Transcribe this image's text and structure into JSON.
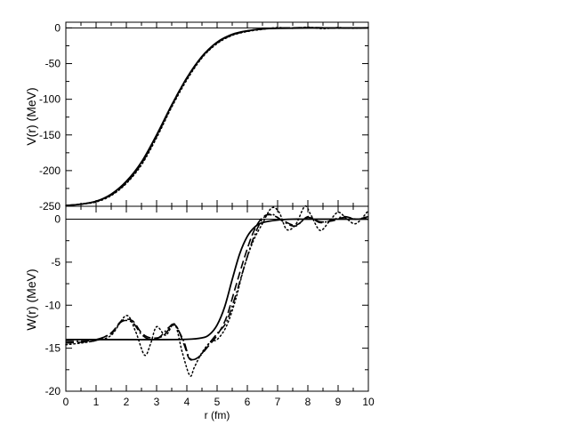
{
  "chart_data": [
    {
      "type": "line",
      "panel": "top",
      "ylabel": "V(r) (MeV)",
      "xlim": [
        0,
        10
      ],
      "ylim": [
        -250,
        8
      ],
      "yticks": [
        0,
        -50,
        -100,
        -150,
        -200,
        -250
      ],
      "zero_line": true,
      "series": [
        {
          "style": "solid",
          "x": [
            0,
            0.5,
            1,
            1.5,
            2,
            2.5,
            3,
            3.5,
            4,
            4.5,
            5,
            5.5,
            6,
            6.5,
            7,
            8,
            9,
            10
          ],
          "y": [
            -249,
            -247,
            -243,
            -233,
            -215,
            -188,
            -150,
            -108,
            -70,
            -40,
            -20,
            -9,
            -4,
            -1.5,
            -0.6,
            -0.1,
            0,
            0
          ]
        },
        {
          "style": "dashed",
          "x": [
            0,
            0.5,
            1,
            1.5,
            2,
            2.5,
            3,
            3.5,
            4,
            4.5,
            5,
            5.5,
            6,
            6.5,
            7,
            8,
            9,
            10
          ],
          "y": [
            -249,
            -247,
            -243,
            -234,
            -217,
            -190,
            -152,
            -109,
            -71,
            -41,
            -21,
            -10,
            -4.5,
            -1.5,
            -0.3,
            0.5,
            0,
            0.3
          ]
        },
        {
          "style": "dotted",
          "x": [
            0,
            0.5,
            1,
            1.5,
            2,
            2.5,
            3,
            3.5,
            4,
            4.5,
            5,
            5.5,
            6,
            6.5,
            7,
            7.5,
            8,
            8.5,
            9,
            9.5,
            10
          ],
          "y": [
            -249,
            -247,
            -244,
            -235,
            -218,
            -192,
            -154,
            -111,
            -73,
            -42,
            -22,
            -10.5,
            -5,
            -2,
            0.5,
            -0.5,
            1,
            -1,
            0.5,
            -0.5,
            0.5
          ]
        },
        {
          "style": "dash-dot",
          "x": [
            0,
            0.5,
            1,
            1.5,
            2,
            2.5,
            3,
            3.5,
            4,
            4.5,
            5,
            5.5,
            6,
            6.5,
            7,
            8,
            9,
            10
          ],
          "y": [
            -249,
            -247,
            -243,
            -234,
            -216,
            -190,
            -151,
            -108,
            -70,
            -40,
            -20,
            -9.5,
            -4,
            -1.2,
            -0.2,
            0.3,
            -0.2,
            0.2
          ]
        }
      ]
    },
    {
      "type": "line",
      "panel": "bottom",
      "xlabel": "r (fm)",
      "ylabel": "W(r) (MeV)",
      "xlim": [
        0,
        10
      ],
      "ylim": [
        -20,
        1.5
      ],
      "xticks": [
        0,
        1,
        2,
        3,
        4,
        5,
        6,
        7,
        8,
        9,
        10
      ],
      "yticks": [
        0,
        -5,
        -10,
        -15,
        -20
      ],
      "zero_line": true,
      "series": [
        {
          "style": "solid",
          "x": [
            0,
            1,
            2,
            3,
            4,
            4.5,
            4.75,
            5,
            5.25,
            5.5,
            5.75,
            6,
            6.25,
            6.5,
            7,
            7.5,
            8,
            9,
            10
          ],
          "y": [
            -14,
            -14,
            -14,
            -14,
            -13.97,
            -13.8,
            -13.4,
            -12.3,
            -10.2,
            -7,
            -4,
            -2,
            -0.9,
            -0.4,
            -0.1,
            0,
            0,
            0,
            0
          ]
        },
        {
          "style": "dashed",
          "x": [
            0,
            0.5,
            1,
            1.5,
            1.85,
            2.2,
            2.5,
            2.8,
            3.2,
            3.6,
            3.9,
            4.1,
            4.4,
            4.7,
            5,
            5.3,
            5.6,
            5.9,
            6.2,
            6.5,
            6.8,
            7.2,
            7.6,
            8,
            8.4,
            8.8,
            9.2,
            9.6,
            10
          ],
          "y": [
            -14.4,
            -14.3,
            -14.1,
            -13.2,
            -11.8,
            -11.8,
            -13.2,
            -13.8,
            -13.6,
            -12.3,
            -14.5,
            -16.3,
            -16,
            -14.8,
            -13.5,
            -11.5,
            -8,
            -4.5,
            -1.5,
            0.2,
            0.5,
            -0.2,
            -0.7,
            0.2,
            -0.3,
            -0.2,
            0.2,
            0,
            0.3
          ]
        },
        {
          "style": "dotted",
          "x": [
            0,
            0.5,
            1,
            1.5,
            2,
            2.3,
            2.6,
            2.8,
            3,
            3.3,
            3.6,
            3.85,
            4.1,
            4.25,
            4.5,
            4.8,
            5,
            5.3,
            5.6,
            5.9,
            6.2,
            6.5,
            6.8,
            7.05,
            7.3,
            7.6,
            7.9,
            8.1,
            8.4,
            8.7,
            9,
            9.3,
            9.6,
            10
          ],
          "y": [
            -14.6,
            -14.4,
            -14.1,
            -13.5,
            -11.2,
            -13,
            -15.8,
            -14.5,
            -12.5,
            -13.5,
            -12.2,
            -15.5,
            -18.2,
            -17.2,
            -15.5,
            -14.2,
            -14,
            -12.5,
            -9.5,
            -5.5,
            -2.5,
            -0.5,
            1.3,
            0.8,
            -1.2,
            -0.6,
            1.5,
            0.5,
            -1.3,
            -0.3,
            0.8,
            0,
            -0.5,
            1
          ]
        },
        {
          "style": "dash-dot",
          "x": [
            0,
            0.5,
            1,
            1.5,
            1.85,
            2.2,
            2.5,
            2.8,
            3.1,
            3.4,
            3.6,
            3.9,
            4.1,
            4.4,
            4.7,
            5,
            5.3,
            5.6,
            5.9,
            6.2,
            6.5,
            6.8,
            7.2,
            7.6,
            8,
            8.4,
            8.8,
            9.2,
            9.6,
            10
          ],
          "y": [
            -14.2,
            -14.2,
            -14,
            -13.3,
            -11.9,
            -12,
            -13.4,
            -14,
            -13.7,
            -12.6,
            -12.3,
            -14.2,
            -16.2,
            -16,
            -14.6,
            -13.3,
            -12,
            -9,
            -5.5,
            -2.2,
            0,
            0.6,
            -0.3,
            -0.8,
            0.3,
            -0.4,
            -0.1,
            0.3,
            0,
            0.2
          ]
        }
      ]
    }
  ]
}
